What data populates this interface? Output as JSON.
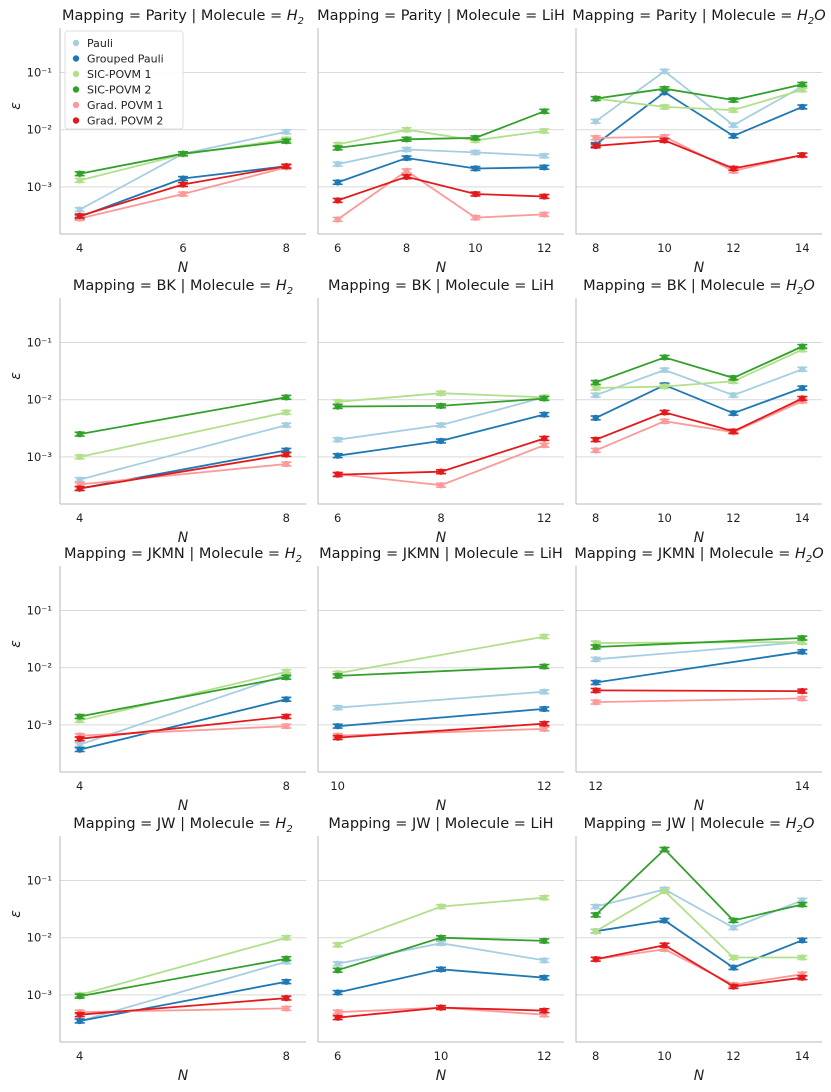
{
  "figure": {
    "ylabel": "ε",
    "xlabel": "N",
    "yscale": "log",
    "ylim": [
      0.00015,
      0.6
    ],
    "ytick_values": [
      0.001,
      0.01,
      0.1
    ],
    "ytick_labels": [
      "10⁻³",
      "10⁻²",
      "10⁻¹"
    ],
    "legend": {
      "location": "top-left of first panel",
      "entries": [
        "Pauli",
        "Grouped Pauli",
        "SIC-POVM 1",
        "SIC-POVM 2",
        "Grad. POVM 1",
        "Grad. POVM 2"
      ]
    },
    "colors": {
      "Pauli": "#a6cee3",
      "Grouped Pauli": "#1f78b4",
      "SIC-POVM 1": "#b2df8a",
      "SIC-POVM 2": "#33a02c",
      "Grad. POVM 1": "#fb9a99",
      "Grad. POVM 2": "#e31a1c"
    }
  },
  "chart_data": [
    {
      "type": "line",
      "title": "Mapping = Parity | Molecule = H2",
      "mapping": "Parity",
      "molecule": "H2",
      "title_prefix": "Mapping = Parity | Molecule = ",
      "mol_base": "H",
      "mol_sub": "2",
      "mol_tail": "",
      "mol_italic": true,
      "xlabel": "N",
      "ylabel": "ε",
      "categories": [
        "4",
        "6",
        "8"
      ],
      "series": [
        {
          "name": "Pauli",
          "values": [
            0.0004,
            0.0038,
            0.0092
          ]
        },
        {
          "name": "Grouped Pauli",
          "values": [
            0.0003,
            0.0014,
            0.0023
          ]
        },
        {
          "name": "SIC-POVM 1",
          "values": [
            0.0013,
            0.0037,
            0.0068
          ]
        },
        {
          "name": "SIC-POVM 2",
          "values": [
            0.0017,
            0.0038,
            0.0063
          ]
        },
        {
          "name": "Grad. POVM 1",
          "values": [
            0.00028,
            0.00075,
            0.0022
          ]
        },
        {
          "name": "Grad. POVM 2",
          "values": [
            0.00031,
            0.0011,
            0.0023
          ]
        }
      ]
    },
    {
      "type": "line",
      "title": "Mapping = Parity | Molecule = LiH",
      "mapping": "Parity",
      "molecule": "LiH",
      "title_prefix": "Mapping = Parity | Molecule = ",
      "mol_base": "LiH",
      "mol_sub": "",
      "mol_tail": "",
      "mol_italic": false,
      "xlabel": "N",
      "ylabel": "ε",
      "categories": [
        "6",
        "8",
        "10",
        "12"
      ],
      "series": [
        {
          "name": "Pauli",
          "values": [
            0.0025,
            0.0045,
            0.004,
            0.0035
          ]
        },
        {
          "name": "Grouped Pauli",
          "values": [
            0.0012,
            0.0032,
            0.0021,
            0.0022
          ]
        },
        {
          "name": "SIC-POVM 1",
          "values": [
            0.0055,
            0.01,
            0.0065,
            0.0095
          ]
        },
        {
          "name": "SIC-POVM 2",
          "values": [
            0.0048,
            0.0068,
            0.0072,
            0.021
          ]
        },
        {
          "name": "Grad. POVM 1",
          "values": [
            0.00027,
            0.0019,
            0.00029,
            0.00033
          ]
        },
        {
          "name": "Grad. POVM 2",
          "values": [
            0.00058,
            0.0015,
            0.00075,
            0.00068
          ]
        }
      ]
    },
    {
      "type": "line",
      "title": "Mapping = Parity | Molecule = H2O",
      "mapping": "Parity",
      "molecule": "H2O",
      "title_prefix": "Mapping = Parity | Molecule = ",
      "mol_base": "H",
      "mol_sub": "2",
      "mol_tail": "O",
      "mol_italic": true,
      "xlabel": "N",
      "ylabel": "ε",
      "categories": [
        "8",
        "10",
        "12",
        "14"
      ],
      "series": [
        {
          "name": "Pauli",
          "values": [
            0.014,
            0.105,
            0.012,
            0.057
          ]
        },
        {
          "name": "Grouped Pauli",
          "values": [
            0.0055,
            0.045,
            0.0078,
            0.025
          ]
        },
        {
          "name": "SIC-POVM 1",
          "values": [
            0.035,
            0.025,
            0.022,
            0.05
          ]
        },
        {
          "name": "SIC-POVM 2",
          "values": [
            0.035,
            0.052,
            0.033,
            0.062
          ]
        },
        {
          "name": "Grad. POVM 1",
          "values": [
            0.0072,
            0.0075,
            0.0019,
            0.0036
          ]
        },
        {
          "name": "Grad. POVM 2",
          "values": [
            0.0052,
            0.0065,
            0.0021,
            0.0036
          ]
        }
      ]
    },
    {
      "type": "line",
      "title": "Mapping = BK | Molecule = H2",
      "mapping": "BK",
      "molecule": "H2",
      "title_prefix": "Mapping = BK | Molecule = ",
      "mol_base": "H",
      "mol_sub": "2",
      "mol_tail": "",
      "mol_italic": true,
      "xlabel": "N",
      "ylabel": "ε",
      "categories": [
        "4",
        "8"
      ],
      "series": [
        {
          "name": "Pauli",
          "values": [
            0.0004,
            0.0036
          ]
        },
        {
          "name": "Grouped Pauli",
          "values": [
            0.00028,
            0.0013
          ]
        },
        {
          "name": "SIC-POVM 1",
          "values": [
            0.001,
            0.006
          ]
        },
        {
          "name": "SIC-POVM 2",
          "values": [
            0.0025,
            0.011
          ]
        },
        {
          "name": "Grad. POVM 1",
          "values": [
            0.00033,
            0.00075
          ]
        },
        {
          "name": "Grad. POVM 2",
          "values": [
            0.00028,
            0.0011
          ]
        }
      ]
    },
    {
      "type": "line",
      "title": "Mapping = BK | Molecule = LiH",
      "mapping": "BK",
      "molecule": "LiH",
      "title_prefix": "Mapping = BK | Molecule = ",
      "mol_base": "LiH",
      "mol_sub": "",
      "mol_tail": "",
      "mol_italic": false,
      "xlabel": "N",
      "ylabel": "ε",
      "categories": [
        "6",
        "8",
        "12"
      ],
      "series": [
        {
          "name": "Pauli",
          "values": [
            0.002,
            0.0036,
            0.011
          ]
        },
        {
          "name": "Grouped Pauli",
          "values": [
            0.00105,
            0.0019,
            0.0055
          ]
        },
        {
          "name": "SIC-POVM 1",
          "values": [
            0.0092,
            0.013,
            0.011
          ]
        },
        {
          "name": "SIC-POVM 2",
          "values": [
            0.0076,
            0.0078,
            0.0105
          ]
        },
        {
          "name": "Grad. POVM 1",
          "values": [
            0.0005,
            0.00032,
            0.0016
          ]
        },
        {
          "name": "Grad. POVM 2",
          "values": [
            0.00049,
            0.00055,
            0.0021
          ]
        }
      ]
    },
    {
      "type": "line",
      "title": "Mapping = BK | Molecule = H2O",
      "mapping": "BK",
      "molecule": "H2O",
      "title_prefix": "Mapping = BK | Molecule = ",
      "mol_base": "H",
      "mol_sub": "2",
      "mol_tail": "O",
      "mol_italic": true,
      "xlabel": "N",
      "ylabel": "ε",
      "categories": [
        "8",
        "10",
        "12",
        "14"
      ],
      "series": [
        {
          "name": "Pauli",
          "values": [
            0.012,
            0.033,
            0.012,
            0.034
          ]
        },
        {
          "name": "Grouped Pauli",
          "values": [
            0.0048,
            0.018,
            0.0058,
            0.016
          ]
        },
        {
          "name": "SIC-POVM 1",
          "values": [
            0.016,
            0.017,
            0.021,
            0.075
          ]
        },
        {
          "name": "SIC-POVM 2",
          "values": [
            0.02,
            0.055,
            0.024,
            0.085
          ]
        },
        {
          "name": "Grad. POVM 1",
          "values": [
            0.0013,
            0.0042,
            0.0027,
            0.0095
          ]
        },
        {
          "name": "Grad. POVM 2",
          "values": [
            0.002,
            0.006,
            0.0028,
            0.0105
          ]
        }
      ]
    },
    {
      "type": "line",
      "title": "Mapping = JKMN | Molecule = H2",
      "mapping": "JKMN",
      "molecule": "H2",
      "title_prefix": "Mapping = JKMN | Molecule = ",
      "mol_base": "H",
      "mol_sub": "2",
      "mol_tail": "",
      "mol_italic": true,
      "xlabel": "N",
      "ylabel": "ε",
      "categories": [
        "4",
        "8"
      ],
      "series": [
        {
          "name": "Pauli",
          "values": [
            0.00045,
            0.0075
          ]
        },
        {
          "name": "Grouped Pauli",
          "values": [
            0.00037,
            0.0028
          ]
        },
        {
          "name": "SIC-POVM 1",
          "values": [
            0.0012,
            0.0085
          ]
        },
        {
          "name": "SIC-POVM 2",
          "values": [
            0.0014,
            0.0068
          ]
        },
        {
          "name": "Grad. POVM 1",
          "values": [
            0.00065,
            0.00095
          ]
        },
        {
          "name": "Grad. POVM 2",
          "values": [
            0.00057,
            0.0014
          ]
        }
      ]
    },
    {
      "type": "line",
      "title": "Mapping = JKMN | Molecule = LiH",
      "mapping": "JKMN",
      "molecule": "LiH",
      "title_prefix": "Mapping = JKMN | Molecule = ",
      "mol_base": "LiH",
      "mol_sub": "",
      "mol_tail": "",
      "mol_italic": false,
      "xlabel": "N",
      "ylabel": "ε",
      "categories": [
        "10",
        "12"
      ],
      "series": [
        {
          "name": "Pauli",
          "values": [
            0.002,
            0.0038
          ]
        },
        {
          "name": "Grouped Pauli",
          "values": [
            0.00095,
            0.0019
          ]
        },
        {
          "name": "SIC-POVM 1",
          "values": [
            0.008,
            0.035
          ]
        },
        {
          "name": "SIC-POVM 2",
          "values": [
            0.0072,
            0.0105
          ]
        },
        {
          "name": "Grad. POVM 1",
          "values": [
            0.00065,
            0.00085
          ]
        },
        {
          "name": "Grad. POVM 2",
          "values": [
            0.0006,
            0.00105
          ]
        }
      ]
    },
    {
      "type": "line",
      "title": "Mapping = JKMN | Molecule = H2O",
      "mapping": "JKMN",
      "molecule": "H2O",
      "title_prefix": "Mapping = JKMN | Molecule = ",
      "mol_base": "H",
      "mol_sub": "2",
      "mol_tail": "O",
      "mol_italic": true,
      "xlabel": "N",
      "ylabel": "ε",
      "categories": [
        "12",
        "14"
      ],
      "series": [
        {
          "name": "Pauli",
          "values": [
            0.014,
            0.028
          ]
        },
        {
          "name": "Grouped Pauli",
          "values": [
            0.0055,
            0.019
          ]
        },
        {
          "name": "SIC-POVM 1",
          "values": [
            0.027,
            0.028
          ]
        },
        {
          "name": "SIC-POVM 2",
          "values": [
            0.023,
            0.033
          ]
        },
        {
          "name": "Grad. POVM 1",
          "values": [
            0.0025,
            0.0029
          ]
        },
        {
          "name": "Grad. POVM 2",
          "values": [
            0.004,
            0.0039
          ]
        }
      ]
    },
    {
      "type": "line",
      "title": "Mapping = JW | Molecule = H2",
      "mapping": "JW",
      "molecule": "H2",
      "title_prefix": "Mapping = JW | Molecule = ",
      "mol_base": "H",
      "mol_sub": "2",
      "mol_tail": "",
      "mol_italic": true,
      "xlabel": "N",
      "ylabel": "ε",
      "categories": [
        "4",
        "8"
      ],
      "series": [
        {
          "name": "Pauli",
          "values": [
            0.00035,
            0.0038
          ]
        },
        {
          "name": "Grouped Pauli",
          "values": [
            0.00035,
            0.0017
          ]
        },
        {
          "name": "SIC-POVM 1",
          "values": [
            0.001,
            0.01
          ]
        },
        {
          "name": "SIC-POVM 2",
          "values": [
            0.00095,
            0.0043
          ]
        },
        {
          "name": "Grad. POVM 1",
          "values": [
            0.0005,
            0.00058
          ]
        },
        {
          "name": "Grad. POVM 2",
          "values": [
            0.00045,
            0.00088
          ]
        }
      ]
    },
    {
      "type": "line",
      "title": "Mapping = JW | Molecule = LiH",
      "mapping": "JW",
      "molecule": "LiH",
      "title_prefix": "Mapping = JW | Molecule = ",
      "mol_base": "LiH",
      "mol_sub": "",
      "mol_tail": "",
      "mol_italic": false,
      "xlabel": "N",
      "ylabel": "ε",
      "categories": [
        "6",
        "10",
        "12"
      ],
      "series": [
        {
          "name": "Pauli",
          "values": [
            0.0035,
            0.008,
            0.004
          ]
        },
        {
          "name": "Grouped Pauli",
          "values": [
            0.0011,
            0.0028,
            0.002
          ]
        },
        {
          "name": "SIC-POVM 1",
          "values": [
            0.0075,
            0.035,
            0.05
          ]
        },
        {
          "name": "SIC-POVM 2",
          "values": [
            0.0027,
            0.01,
            0.0088
          ]
        },
        {
          "name": "Grad. POVM 1",
          "values": [
            0.0005,
            0.0006,
            0.00045
          ]
        },
        {
          "name": "Grad. POVM 2",
          "values": [
            0.0004,
            0.0006,
            0.00053
          ]
        }
      ]
    },
    {
      "type": "line",
      "title": "Mapping = JW | Molecule = H2O",
      "mapping": "JW",
      "molecule": "H2O",
      "title_prefix": "Mapping = JW | Molecule = ",
      "mol_base": "H",
      "mol_sub": "2",
      "mol_tail": "O",
      "mol_italic": true,
      "xlabel": "N",
      "ylabel": "ε",
      "categories": [
        "8",
        "10",
        "12",
        "14"
      ],
      "series": [
        {
          "name": "Pauli",
          "values": [
            0.035,
            0.07,
            0.015,
            0.045
          ]
        },
        {
          "name": "Grouped Pauli",
          "values": [
            0.013,
            0.02,
            0.003,
            0.009
          ]
        },
        {
          "name": "SIC-POVM 1",
          "values": [
            0.013,
            0.065,
            0.0045,
            0.0045
          ]
        },
        {
          "name": "SIC-POVM 2",
          "values": [
            0.025,
            0.35,
            0.02,
            0.038
          ]
        },
        {
          "name": "Grad. POVM 1",
          "values": [
            0.0042,
            0.0063,
            0.0015,
            0.0023
          ]
        },
        {
          "name": "Grad. POVM 2",
          "values": [
            0.0042,
            0.0074,
            0.0014,
            0.002
          ]
        }
      ]
    }
  ]
}
